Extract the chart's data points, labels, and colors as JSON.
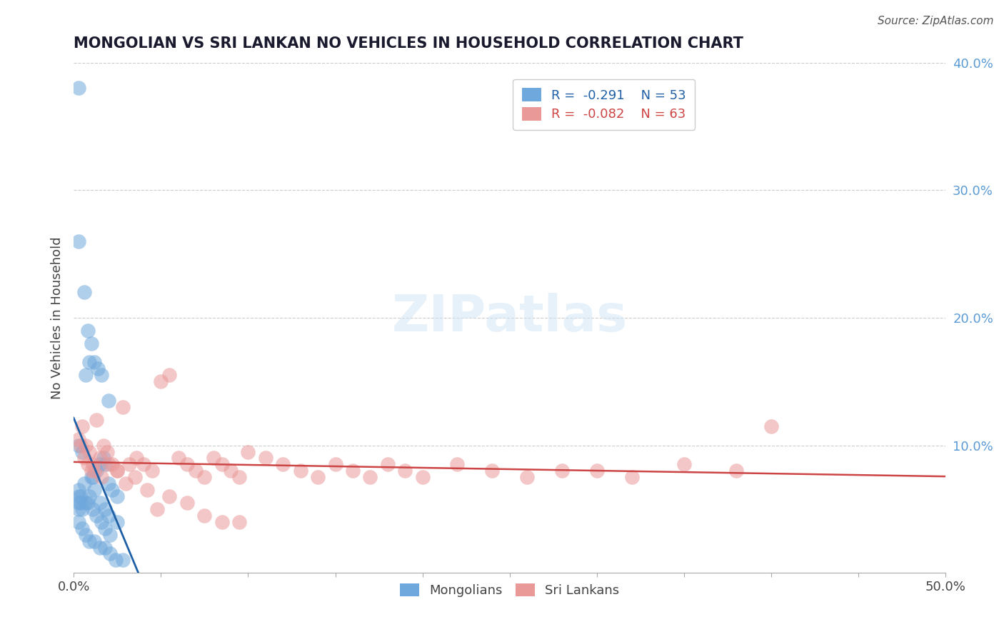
{
  "title": "MONGOLIAN VS SRI LANKAN NO VEHICLES IN HOUSEHOLD CORRELATION CHART",
  "source_text": "Source: ZipAtlas.com",
  "xlabel": "",
  "ylabel": "No Vehicles in Household",
  "xlim": [
    0.0,
    0.5
  ],
  "ylim": [
    0.0,
    0.4
  ],
  "xticks": [
    0.0,
    0.05,
    0.1,
    0.15,
    0.2,
    0.25,
    0.3,
    0.35,
    0.4,
    0.45,
    0.5
  ],
  "xticklabels": [
    "0.0%",
    "",
    "",
    "",
    "",
    "",
    "",
    "",
    "",
    "",
    "50.0%"
  ],
  "yticks": [
    0.0,
    0.1,
    0.2,
    0.3,
    0.4
  ],
  "yticklabels": [
    "",
    "10.0%",
    "20.0%",
    "30.0%",
    "40.0%"
  ],
  "mongolian_color": "#6fa8dc",
  "srilanka_color": "#ea9999",
  "mongolian_line_color": "#1f5fa6",
  "srilanka_line_color": "#cc4444",
  "legend_R_mongolian": "R =  -0.291",
  "legend_N_mongolian": "N = 53",
  "legend_R_srilanka": "R =  -0.082",
  "legend_N_srilanka": "N = 63",
  "watermark": "ZIPatlas",
  "mongolian_x": [
    0.003,
    0.005,
    0.006,
    0.008,
    0.01,
    0.012,
    0.014,
    0.016,
    0.018,
    0.02,
    0.003,
    0.007,
    0.009,
    0.011,
    0.013,
    0.015,
    0.017,
    0.02,
    0.022,
    0.025,
    0.003,
    0.004,
    0.006,
    0.008,
    0.01,
    0.012,
    0.015,
    0.018,
    0.02,
    0.025,
    0.003,
    0.004,
    0.005,
    0.007,
    0.009,
    0.011,
    0.013,
    0.016,
    0.018,
    0.021,
    0.003,
    0.005,
    0.007,
    0.009,
    0.012,
    0.015,
    0.018,
    0.021,
    0.024,
    0.028,
    0.003,
    0.003,
    0.003
  ],
  "mongolian_y": [
    0.26,
    0.095,
    0.22,
    0.19,
    0.18,
    0.165,
    0.16,
    0.155,
    0.085,
    0.135,
    0.1,
    0.155,
    0.165,
    0.075,
    0.08,
    0.085,
    0.09,
    0.07,
    0.065,
    0.06,
    0.065,
    0.06,
    0.07,
    0.055,
    0.075,
    0.065,
    0.055,
    0.05,
    0.045,
    0.04,
    0.06,
    0.055,
    0.05,
    0.055,
    0.06,
    0.05,
    0.045,
    0.04,
    0.035,
    0.03,
    0.04,
    0.035,
    0.03,
    0.025,
    0.025,
    0.02,
    0.02,
    0.015,
    0.01,
    0.01,
    0.38,
    0.05,
    0.055
  ],
  "srilanka_x": [
    0.003,
    0.005,
    0.007,
    0.009,
    0.011,
    0.013,
    0.015,
    0.017,
    0.019,
    0.022,
    0.025,
    0.028,
    0.032,
    0.036,
    0.04,
    0.045,
    0.05,
    0.055,
    0.06,
    0.065,
    0.07,
    0.075,
    0.08,
    0.085,
    0.09,
    0.095,
    0.1,
    0.11,
    0.12,
    0.13,
    0.14,
    0.15,
    0.16,
    0.17,
    0.18,
    0.19,
    0.2,
    0.22,
    0.24,
    0.26,
    0.28,
    0.3,
    0.32,
    0.35,
    0.38,
    0.4,
    0.004,
    0.006,
    0.008,
    0.01,
    0.012,
    0.016,
    0.02,
    0.025,
    0.03,
    0.035,
    0.042,
    0.048,
    0.055,
    0.065,
    0.075,
    0.085,
    0.095
  ],
  "srilanka_y": [
    0.105,
    0.115,
    0.1,
    0.095,
    0.085,
    0.12,
    0.09,
    0.1,
    0.095,
    0.085,
    0.08,
    0.13,
    0.085,
    0.09,
    0.085,
    0.08,
    0.15,
    0.155,
    0.09,
    0.085,
    0.08,
    0.075,
    0.09,
    0.085,
    0.08,
    0.075,
    0.095,
    0.09,
    0.085,
    0.08,
    0.075,
    0.085,
    0.08,
    0.075,
    0.085,
    0.08,
    0.075,
    0.085,
    0.08,
    0.075,
    0.08,
    0.08,
    0.075,
    0.085,
    0.08,
    0.115,
    0.1,
    0.09,
    0.085,
    0.08,
    0.08,
    0.075,
    0.085,
    0.08,
    0.07,
    0.075,
    0.065,
    0.05,
    0.06,
    0.055,
    0.045,
    0.04,
    0.04
  ]
}
